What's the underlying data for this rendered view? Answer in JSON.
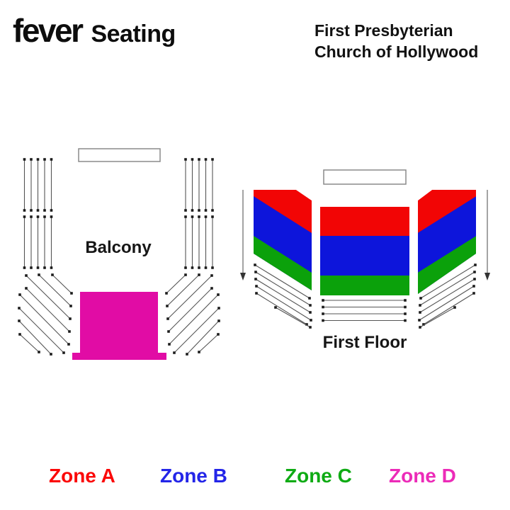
{
  "header": {
    "logo": "fever",
    "product": "Seating",
    "venue_line1": "First Presbyterian",
    "venue_line2": "Church of Hollywood"
  },
  "labels": {
    "balcony": "Balcony",
    "first_floor": "First Floor"
  },
  "legend": [
    {
      "label": "Zone A",
      "color": "#fb0707"
    },
    {
      "label": "Zone B",
      "color": "#2325e8"
    },
    {
      "label": "Zone C",
      "color": "#0fab14"
    },
    {
      "label": "Zone D",
      "color": "#ec2bb8"
    }
  ],
  "colors": {
    "zone_a": "#f20505",
    "zone_b": "#0d15db",
    "zone_c": "#0ba10b",
    "zone_d": "#e10ca5",
    "outline": "#8a8a8a",
    "seat_line": "#555555",
    "seat_dot": "#1c1c1c",
    "arrow": "#666666",
    "arrow_head": "#333333"
  }
}
